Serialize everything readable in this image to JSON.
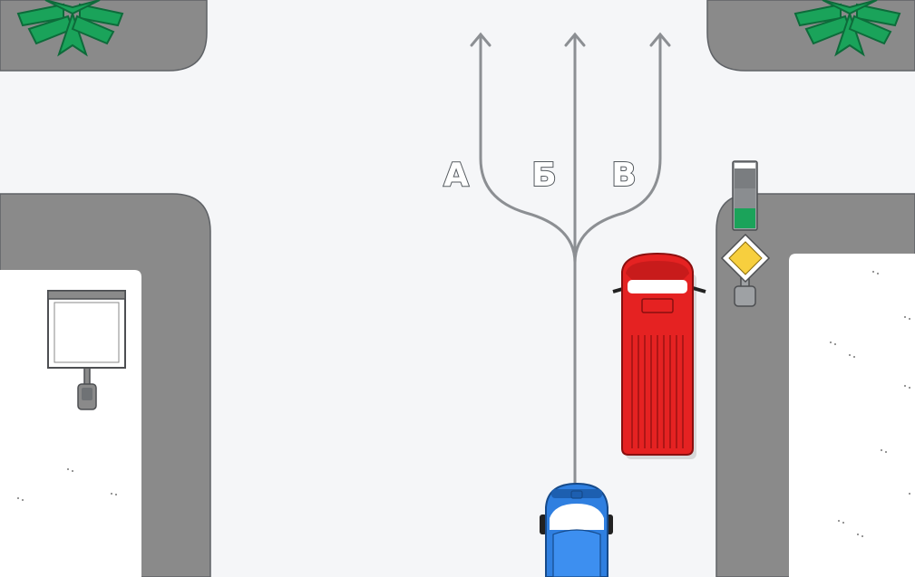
{
  "scene": {
    "background_color": "#f5f6f8",
    "colors": {
      "sidewalk": "#8a8a8a",
      "snow": "#ffffff",
      "tree": "#1aa35a",
      "route_line": "#8c8f93",
      "van": "#e52222",
      "car": "#2f7fe0",
      "signal_green": "#1ba35a",
      "priority_sign": "#f7cf3e"
    }
  },
  "routes": [
    {
      "label": "А"
    },
    {
      "label": "Б"
    },
    {
      "label": "В"
    }
  ],
  "traffic_light": {
    "active_signal": "green"
  },
  "road_sign": {
    "icon": "main-road-sign-icon"
  },
  "vehicles": {
    "van": {
      "color_name": "red"
    },
    "car": {
      "color_name": "blue"
    }
  }
}
